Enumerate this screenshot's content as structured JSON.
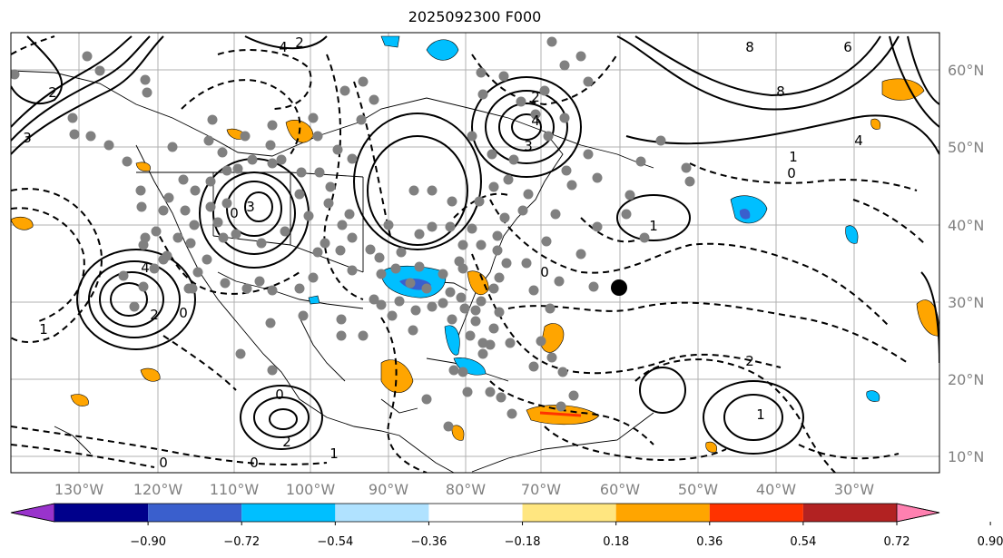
{
  "title": "2025092300 F000",
  "lat_labels": [
    "60°N",
    "50°N",
    "40°N",
    "30°N",
    "20°N",
    "10°N"
  ],
  "lon_labels": [
    "130°W",
    "120°W",
    "110°W",
    "100°W",
    "90°W",
    "80°W",
    "70°W",
    "60°W",
    "50°W",
    "40°W",
    "30°W"
  ],
  "colorbar": {
    "colors": [
      "#9933cc",
      "#00008b",
      "#3a5fcd",
      "#00bfff",
      "#b0e2ff",
      "#ffffff",
      "#ffe680",
      "#ffa500",
      "#ff3300",
      "#b22222",
      "#ff80b0"
    ],
    "tick_labels": [
      "−0.90",
      "−0.72",
      "−0.54",
      "−0.36",
      "−0.18",
      "0.18",
      "0.36",
      "0.54",
      "0.72",
      "0.90"
    ]
  },
  "contour_labels": [
    "4",
    "2",
    "3",
    "8",
    "6",
    "8",
    "4",
    "1",
    "0",
    "3",
    "4",
    "3",
    "4",
    "2",
    "0",
    "1",
    "2",
    "0",
    "0",
    "1",
    "2",
    "1",
    "0",
    "2",
    "0",
    "2",
    "1",
    "0"
  ],
  "colors": {
    "positive_fill": "#ffa500",
    "negative_fill": "#00bfff",
    "marker": "#808080",
    "center_marker": "#000000"
  }
}
